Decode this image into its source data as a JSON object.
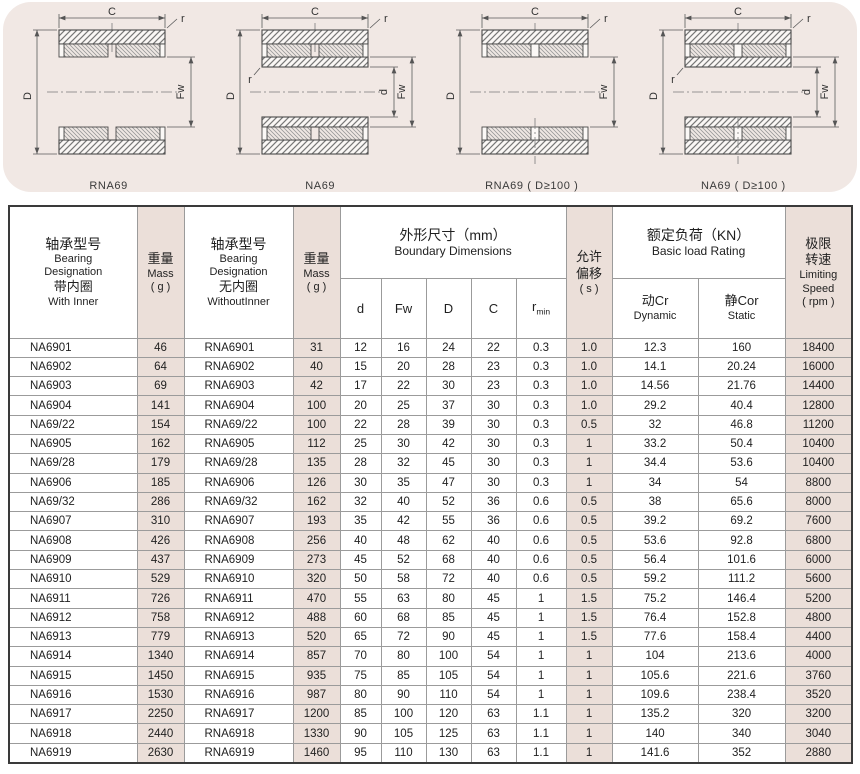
{
  "colors": {
    "panel_pink": "#f1e8e4",
    "cell_pink": "#ebdfd9",
    "border_dark": "#3a3a3a",
    "border_light": "#9b9b9b"
  },
  "diagrams": {
    "dims": {
      "c": "C",
      "outer_diameter": "D",
      "roller_bore": "Fw",
      "inner_bore": "d",
      "radius": "r"
    },
    "items": [
      {
        "caption": "RNA69"
      },
      {
        "caption": "NA69"
      },
      {
        "caption": "RNA69 ( D≥100 )"
      },
      {
        "caption": "NA69 ( D≥100 )"
      }
    ]
  },
  "table": {
    "pink_columns": [
      1,
      3,
      9,
      12
    ],
    "header": {
      "with_inner": {
        "zh": "轴承型号",
        "en": "Bearing\nDesignation",
        "zh2": "带内圈",
        "en2": "With Inner"
      },
      "mass": {
        "zh": "重量",
        "en": "Mass",
        "unit": "( g )"
      },
      "without_inner": {
        "zh": "轴承型号",
        "en": "Bearing\nDesignation",
        "zh2": "无内圈",
        "en2": "WithoutInner"
      },
      "boundary": {
        "zh": "外形尺寸（mm）",
        "en": "Boundary Dimensions"
      },
      "misalignment": {
        "zh": "允许\n偏移",
        "unit": "( s )"
      },
      "load_rating": {
        "zh": "额定负荷（KN）",
        "en": "Basic load Rating"
      },
      "speed": {
        "zh": "极限\n转速",
        "en": "Limiting\nSpeed\n( rpm )"
      },
      "sub": {
        "d": "d",
        "fw": "Fw",
        "outer": "D",
        "width": "C",
        "r": "r",
        "r_sub": "min",
        "cr_zh": "动Cr",
        "cr_en": "Dynamic",
        "cor_zh": "静Cor",
        "cor_en": "Static"
      }
    },
    "rows": [
      [
        "NA6901",
        "46",
        "RNA6901",
        "31",
        "12",
        "16",
        "24",
        "22",
        "0.3",
        "1.0",
        "12.3",
        "160",
        "18400"
      ],
      [
        "NA6902",
        "64",
        "RNA6902",
        "40",
        "15",
        "20",
        "28",
        "23",
        "0.3",
        "1.0",
        "14.1",
        "20.24",
        "16000"
      ],
      [
        "NA6903",
        "69",
        "RNA6903",
        "42",
        "17",
        "22",
        "30",
        "23",
        "0.3",
        "1.0",
        "14.56",
        "21.76",
        "14400"
      ],
      [
        "NA6904",
        "141",
        "RNA6904",
        "100",
        "20",
        "25",
        "37",
        "30",
        "0.3",
        "1.0",
        "29.2",
        "40.4",
        "12800"
      ],
      [
        "NA69/22",
        "154",
        "RNA69/22",
        "100",
        "22",
        "28",
        "39",
        "30",
        "0.3",
        "0.5",
        "32",
        "46.8",
        "11200"
      ],
      [
        "NA6905",
        "162",
        "RNA6905",
        "112",
        "25",
        "30",
        "42",
        "30",
        "0.3",
        "1",
        "33.2",
        "50.4",
        "10400"
      ],
      [
        "NA69/28",
        "179",
        "RNA69/28",
        "135",
        "28",
        "32",
        "45",
        "30",
        "0.3",
        "1",
        "34.4",
        "53.6",
        "10400"
      ],
      [
        "NA6906",
        "185",
        "RNA6906",
        "126",
        "30",
        "35",
        "47",
        "30",
        "0.3",
        "1",
        "34",
        "54",
        "8800"
      ],
      [
        "NA69/32",
        "286",
        "RNA69/32",
        "162",
        "32",
        "40",
        "52",
        "36",
        "0.6",
        "0.5",
        "38",
        "65.6",
        "8000"
      ],
      [
        "NA6907",
        "310",
        "RNA6907",
        "193",
        "35",
        "42",
        "55",
        "36",
        "0.6",
        "0.5",
        "39.2",
        "69.2",
        "7600"
      ],
      [
        "NA6908",
        "426",
        "RNA6908",
        "256",
        "40",
        "48",
        "62",
        "40",
        "0.6",
        "0.5",
        "53.6",
        "92.8",
        "6800"
      ],
      [
        "NA6909",
        "437",
        "RNA6909",
        "273",
        "45",
        "52",
        "68",
        "40",
        "0.6",
        "0.5",
        "56.4",
        "101.6",
        "6000"
      ],
      [
        "NA6910",
        "529",
        "RNA6910",
        "320",
        "50",
        "58",
        "72",
        "40",
        "0.6",
        "0.5",
        "59.2",
        "111.2",
        "5600"
      ],
      [
        "NA6911",
        "726",
        "RNA6911",
        "470",
        "55",
        "63",
        "80",
        "45",
        "1",
        "1.5",
        "75.2",
        "146.4",
        "5200"
      ],
      [
        "NA6912",
        "758",
        "RNA6912",
        "488",
        "60",
        "68",
        "85",
        "45",
        "1",
        "1.5",
        "76.4",
        "152.8",
        "4800"
      ],
      [
        "NA6913",
        "779",
        "RNA6913",
        "520",
        "65",
        "72",
        "90",
        "45",
        "1",
        "1.5",
        "77.6",
        "158.4",
        "4400"
      ],
      [
        "NA6914",
        "1340",
        "RNA6914",
        "857",
        "70",
        "80",
        "100",
        "54",
        "1",
        "1",
        "104",
        "213.6",
        "4000"
      ],
      [
        "NA6915",
        "1450",
        "RNA6915",
        "935",
        "75",
        "85",
        "105",
        "54",
        "1",
        "1",
        "105.6",
        "221.6",
        "3760"
      ],
      [
        "NA6916",
        "1530",
        "RNA6916",
        "987",
        "80",
        "90",
        "110",
        "54",
        "1",
        "1",
        "109.6",
        "238.4",
        "3520"
      ],
      [
        "NA6917",
        "2250",
        "RNA6917",
        "1200",
        "85",
        "100",
        "120",
        "63",
        "1.1",
        "1",
        "135.2",
        "320",
        "3200"
      ],
      [
        "NA6918",
        "2440",
        "RNA6918",
        "1330",
        "90",
        "105",
        "125",
        "63",
        "1.1",
        "1",
        "140",
        "340",
        "3040"
      ],
      [
        "NA6919",
        "2630",
        "RNA6919",
        "1460",
        "95",
        "110",
        "130",
        "63",
        "1.1",
        "1",
        "141.6",
        "352",
        "2880"
      ]
    ]
  }
}
